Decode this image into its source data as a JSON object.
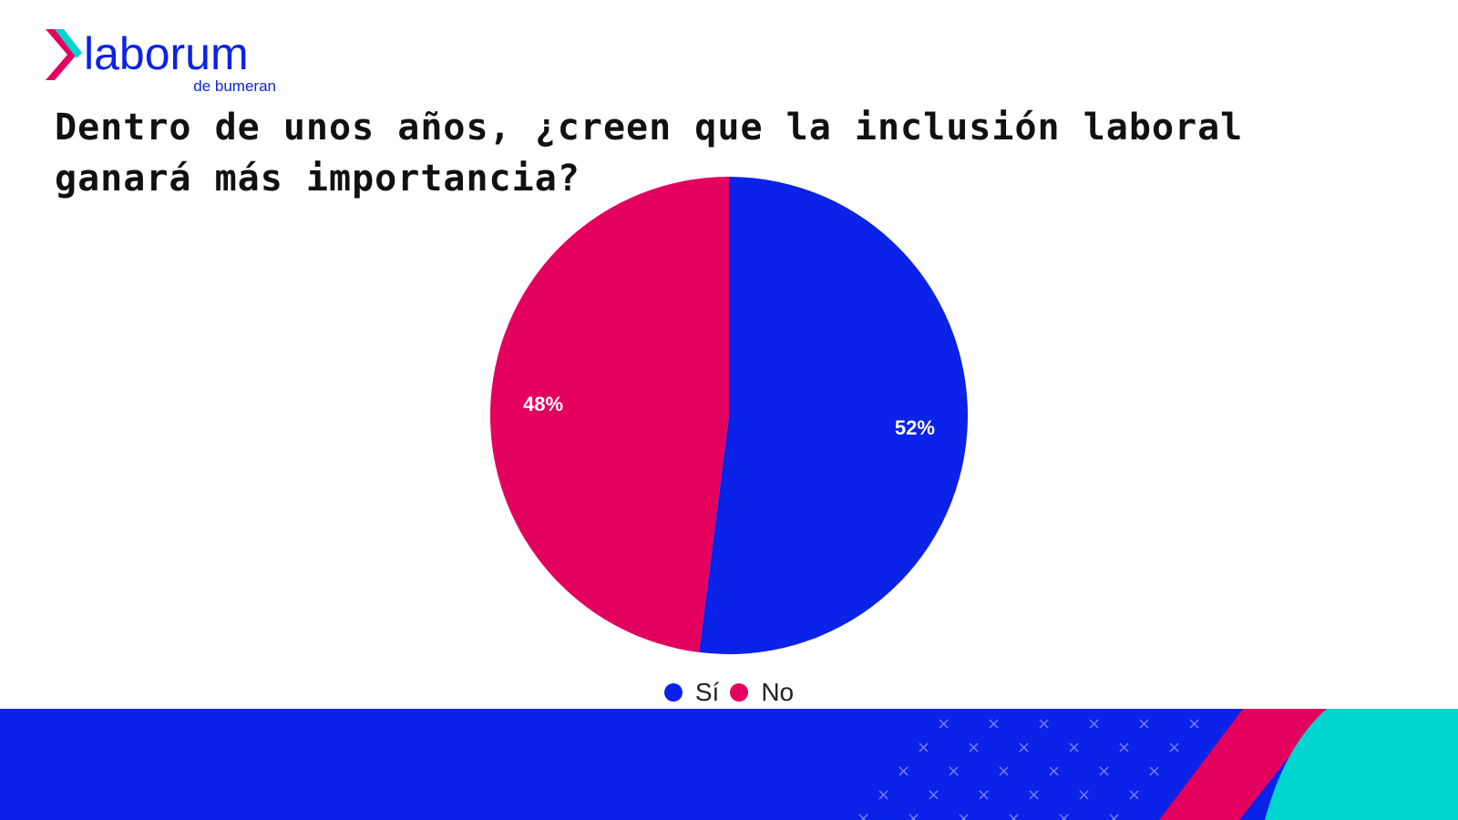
{
  "brand": {
    "name": "laborum",
    "tagline": "de bumeran"
  },
  "question": "Dentro de unos años, ¿creen que la inclusión laboral ganará más importancia?",
  "colors": {
    "blue": "#0b22e8",
    "pink": "#e4005e",
    "teal": "#00d5cf",
    "text": "#111111"
  },
  "chart_data": {
    "type": "pie",
    "title": "Dentro de unos años, ¿creen que la inclusión laboral ganará más importancia?",
    "legend_position": "bottom",
    "slices": [
      {
        "label": "Sí",
        "value": 52,
        "value_label": "52%",
        "color": "#0b22e8"
      },
      {
        "label": "No",
        "value": 48,
        "value_label": "48%",
        "color": "#e4005e"
      }
    ]
  },
  "footer": {
    "pattern_icon": "x-pattern-icon"
  }
}
